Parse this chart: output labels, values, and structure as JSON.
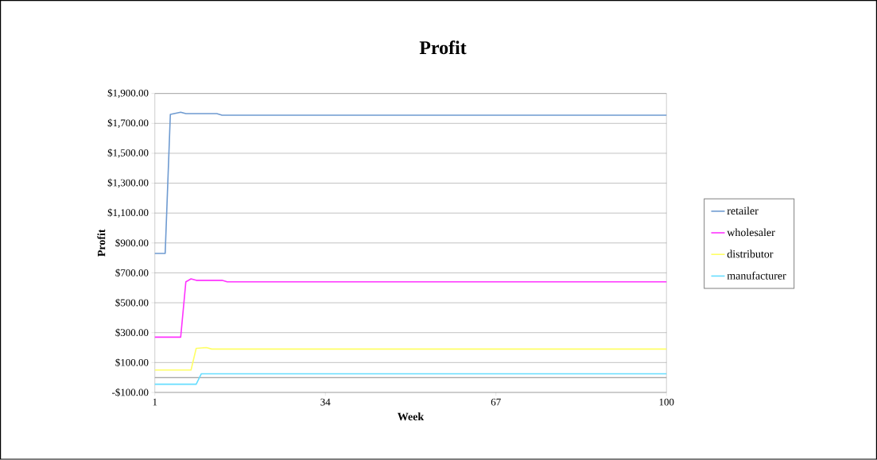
{
  "chart_data": {
    "type": "line",
    "title": "Profit",
    "xlabel": "Week",
    "ylabel": "Profit",
    "xlim": [
      1,
      100
    ],
    "xticks": [
      1,
      34,
      67,
      100
    ],
    "ylim": [
      -100,
      1900
    ],
    "yticks": [
      {
        "value": -100,
        "label": "-$100.00"
      },
      {
        "value": 100,
        "label": "$100.00"
      },
      {
        "value": 300,
        "label": "$300.00"
      },
      {
        "value": 500,
        "label": "$500.00"
      },
      {
        "value": 700,
        "label": "$700.00"
      },
      {
        "value": 900,
        "label": "$900.00"
      },
      {
        "value": 1100,
        "label": "$1,100.00"
      },
      {
        "value": 1300,
        "label": "$1,300.00"
      },
      {
        "value": 1500,
        "label": "$1,500.00"
      },
      {
        "value": 1700,
        "label": "$1,700.00"
      },
      {
        "value": 1900,
        "label": "$1,900.00"
      }
    ],
    "grid": "y",
    "legend": "right",
    "marker": "none",
    "line_style": "solid",
    "ref_lines": [
      {
        "axis": "y",
        "value": 0,
        "color": "#888888"
      }
    ],
    "series": [
      {
        "name": "retailer",
        "color": "#6f9bd1",
        "x": [
          1,
          3,
          4,
          6,
          7,
          13,
          14,
          100
        ],
        "values": [
          830,
          830,
          1760,
          1775,
          1765,
          1765,
          1755,
          1755
        ]
      },
      {
        "name": "wholesaler",
        "color": "#ff33ff",
        "x": [
          1,
          6,
          7,
          8,
          9,
          14,
          15,
          100
        ],
        "values": [
          270,
          270,
          640,
          660,
          650,
          650,
          640,
          640
        ]
      },
      {
        "name": "distributor",
        "color": "#ffff66",
        "x": [
          1,
          8,
          9,
          11,
          12,
          100
        ],
        "values": [
          50,
          50,
          195,
          200,
          190,
          190
        ]
      },
      {
        "name": "manufacturer",
        "color": "#66ddff",
        "x": [
          1,
          9,
          10,
          100
        ],
        "values": [
          -45,
          -45,
          25,
          25
        ]
      }
    ]
  }
}
